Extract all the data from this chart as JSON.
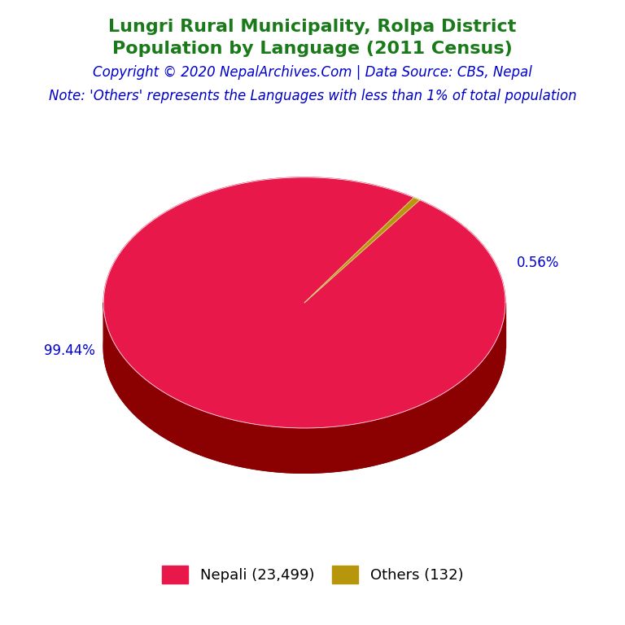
{
  "title_line1": "Lungri Rural Municipality, Rolpa District",
  "title_line2": "Population by Language (2011 Census)",
  "copyright": "Copyright © 2020 NepalArchives.Com | Data Source: CBS, Nepal",
  "note": "Note: 'Others' represents the Languages with less than 1% of total population",
  "labels": [
    "Nepali",
    "Others"
  ],
  "values": [
    23499,
    132
  ],
  "percentages": [
    99.44,
    0.56
  ],
  "colors": [
    "#E8184A",
    "#B8960C"
  ],
  "shadow_color": "#8B0000",
  "legend_labels": [
    "Nepali (23,499)",
    "Others (132)"
  ],
  "title_color": "#1a7a1a",
  "copyright_color": "#0000CD",
  "note_color": "#0000CD",
  "pct_color": "#0000CD",
  "background_color": "#ffffff",
  "title_fontsize": 16,
  "copyright_fontsize": 12,
  "note_fontsize": 12,
  "legend_fontsize": 13,
  "pct_fontsize": 12
}
